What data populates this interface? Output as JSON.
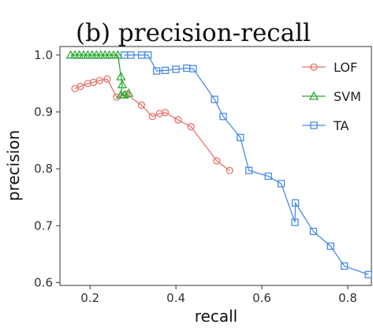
{
  "chart_data": {
    "type": "line",
    "title": "(b) precision-recall",
    "xlabel": "recall",
    "ylabel": "precision",
    "xlim": [
      0.13,
      0.855
    ],
    "ylim": [
      0.595,
      1.015
    ],
    "xticks": [
      0.2,
      0.4,
      0.6,
      0.8
    ],
    "yticks": [
      0.6,
      0.7,
      0.8,
      0.9,
      1.0
    ],
    "xtick_labels": [
      "0.2",
      "0.4",
      "0.6",
      "0.8"
    ],
    "ytick_labels": [
      "0.6",
      "0.7",
      "0.8",
      "0.9",
      "1.0"
    ],
    "grid": false,
    "legend_position": "top-right",
    "series": [
      {
        "name": "LOF",
        "color": "#E8726B",
        "marker": "circle",
        "points": [
          [
            0.165,
            0.941
          ],
          [
            0.178,
            0.945
          ],
          [
            0.195,
            0.95
          ],
          [
            0.208,
            0.952
          ],
          [
            0.222,
            0.955
          ],
          [
            0.24,
            0.958
          ],
          [
            0.262,
            0.926
          ],
          [
            0.285,
            0.931
          ],
          [
            0.32,
            0.912
          ],
          [
            0.345,
            0.892
          ],
          [
            0.362,
            0.897
          ],
          [
            0.375,
            0.899
          ],
          [
            0.405,
            0.886
          ],
          [
            0.435,
            0.874
          ],
          [
            0.495,
            0.814
          ],
          [
            0.525,
            0.797
          ]
        ]
      },
      {
        "name": "SVM",
        "color": "#2EA834",
        "marker": "triangle",
        "points": [
          [
            0.155,
            1.0
          ],
          [
            0.165,
            1.0
          ],
          [
            0.175,
            1.0
          ],
          [
            0.185,
            1.0
          ],
          [
            0.195,
            1.0
          ],
          [
            0.205,
            1.0
          ],
          [
            0.215,
            1.0
          ],
          [
            0.225,
            1.0
          ],
          [
            0.235,
            1.0
          ],
          [
            0.245,
            1.0
          ],
          [
            0.255,
            1.0
          ],
          [
            0.265,
            1.0
          ],
          [
            0.272,
            0.962
          ],
          [
            0.275,
            0.948
          ],
          [
            0.272,
            0.93
          ],
          [
            0.28,
            0.93
          ],
          [
            0.29,
            0.933
          ]
        ]
      },
      {
        "name": "TA",
        "color": "#4A8CE6",
        "marker": "square",
        "points": [
          [
            0.28,
            1.0
          ],
          [
            0.295,
            1.0
          ],
          [
            0.32,
            1.0
          ],
          [
            0.335,
            1.0
          ],
          [
            0.355,
            0.972
          ],
          [
            0.375,
            0.973
          ],
          [
            0.4,
            0.975
          ],
          [
            0.425,
            0.977
          ],
          [
            0.44,
            0.976
          ],
          [
            0.49,
            0.922
          ],
          [
            0.51,
            0.892
          ],
          [
            0.55,
            0.855
          ],
          [
            0.57,
            0.797
          ],
          [
            0.615,
            0.787
          ],
          [
            0.645,
            0.774
          ],
          [
            0.677,
            0.706
          ],
          [
            0.678,
            0.74
          ],
          [
            0.72,
            0.69
          ],
          [
            0.76,
            0.664
          ],
          [
            0.792,
            0.629
          ],
          [
            0.848,
            0.614
          ]
        ]
      }
    ]
  }
}
